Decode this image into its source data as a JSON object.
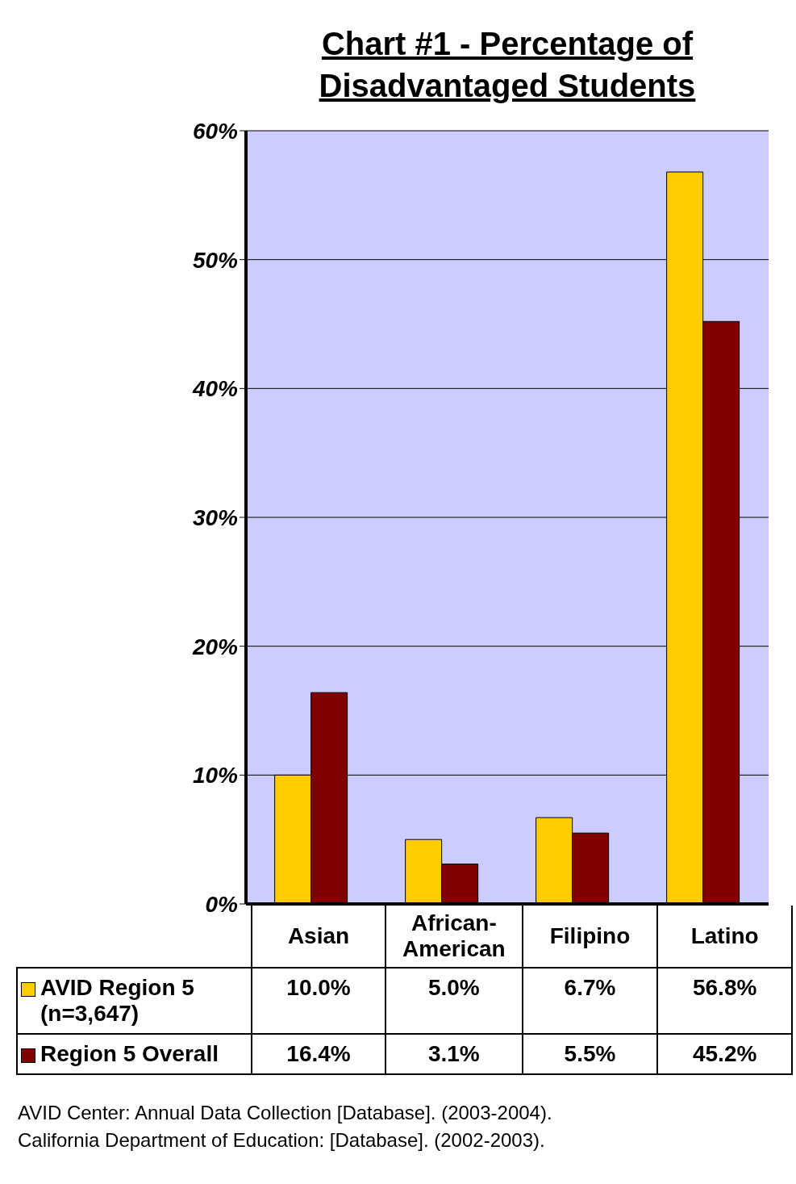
{
  "chart_data": {
    "type": "bar",
    "title": "Chart #1 - Percentage of Disadvantaged Students",
    "categories": [
      "Asian",
      "African-American",
      "Filipino",
      "Latino"
    ],
    "series": [
      {
        "name": "AVID Region 5 (n=3,647)",
        "color": "#ffcc00",
        "values": [
          10.0,
          5.0,
          6.7,
          56.8
        ],
        "value_labels": [
          "10.0%",
          "5.0%",
          "6.7%",
          "56.8%"
        ]
      },
      {
        "name": "Region 5 Overall",
        "color": "#800000",
        "values": [
          16.4,
          3.1,
          5.5,
          45.2
        ],
        "value_labels": [
          "16.4%",
          "3.1%",
          "5.5%",
          "45.2%"
        ]
      }
    ],
    "ylim": [
      0,
      60
    ],
    "yticks": [
      {
        "value": 0,
        "label": "0%"
      },
      {
        "value": 10,
        "label": "10%"
      },
      {
        "value": 20,
        "label": "20%"
      },
      {
        "value": 30,
        "label": "30%"
      },
      {
        "value": 40,
        "label": "40%"
      },
      {
        "value": 50,
        "label": "50%"
      },
      {
        "value": 60,
        "label": "60%"
      }
    ],
    "grid": "y",
    "legend": "bottom",
    "annotations": [
      "AVID Center: Annual Data Collection [Database]. (2003-2004).",
      "California Department of Education: [Database]. (2002-2003)."
    ]
  }
}
